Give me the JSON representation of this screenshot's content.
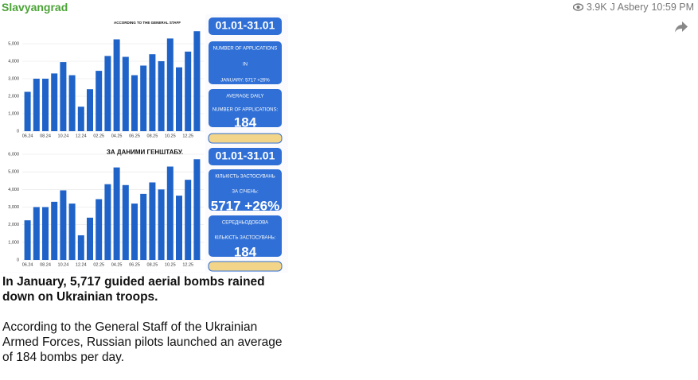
{
  "header": {
    "channel": "Slavyangrad",
    "views": "3.9K",
    "author": "J Asbery",
    "time": "10:59 PM"
  },
  "image": {
    "charts": [
      {
        "type": "bar",
        "caption": "ACCORDING TO THE GENERAL STAFF",
        "color": "#1f63c8",
        "categories": [
          "06.24",
          null,
          "08.24",
          null,
          "10.24",
          null,
          "12.24",
          null,
          "02.25",
          null,
          "04.25",
          null,
          "06.25",
          null,
          "08.25",
          null,
          "10.25",
          null,
          "12.25",
          null
        ],
        "values": [
          2250,
          3000,
          3000,
          3300,
          3950,
          3200,
          1400,
          2400,
          3450,
          4300,
          5250,
          4250,
          3200,
          3750,
          4400,
          4000,
          5300,
          3650,
          4550,
          5717
        ],
        "ylim": [
          0,
          6500
        ],
        "yticks": [
          0,
          {
            "value": 1000,
            "label": "1,000"
          },
          {
            "value": 2000,
            "label": "2,000"
          },
          {
            "value": 3000,
            "label": "3,000"
          },
          {
            "value": 4000,
            "label": "4,000"
          },
          {
            "value": 5000,
            "label": "5,000"
          }
        ],
        "panels": [
          {
            "lines": [
              "01.01-31.01"
            ]
          },
          {
            "lines": [
              "NUMBER OF APPLICATIONS",
              "IN",
              "JANUARY: 5717 +26%"
            ]
          },
          {
            "lines": [
              "AVERAGE DAILY",
              "NUMBER OF APPLICATIONS:",
              "184"
            ]
          }
        ]
      },
      {
        "type": "bar",
        "caption": "ЗА ДАНИМИ ГЕНШТАБУ.",
        "color": "#1f63c8",
        "categories": [
          "06.24",
          null,
          "08.24",
          null,
          "10.24",
          null,
          "12.24",
          null,
          "02.25",
          null,
          "04.25",
          null,
          "06.25",
          null,
          "08.25",
          null,
          "10.25",
          null,
          "12.25",
          null
        ],
        "values": [
          2250,
          3000,
          3000,
          3300,
          3950,
          3200,
          1400,
          2400,
          3450,
          4300,
          5250,
          4250,
          3200,
          3750,
          4400,
          4000,
          5300,
          3650,
          4550,
          5717
        ],
        "ylim": [
          0,
          6000
        ],
        "yticks": [
          0,
          {
            "value": 1000,
            "label": "1,000"
          },
          {
            "value": 2000,
            "label": "2,000"
          },
          {
            "value": 3000,
            "label": "3,000"
          },
          {
            "value": 4000,
            "label": "4,000"
          },
          {
            "value": 5000,
            "label": "5,000"
          },
          {
            "value": 6000,
            "label": "6,000"
          }
        ],
        "panels": [
          {
            "lines": [
              "01.01-31.01"
            ]
          },
          {
            "lines": [
              "КІЛЬКІСТЬ ЗАСТОСУВАНЬ",
              "ЗА СІЧЕНЬ:",
              "5717 +26%"
            ]
          },
          {
            "lines": [
              "СЕРЕДНЬОДОБОВА",
              "КІЛЬКІСТЬ ЗАСТОСУВАНЬ:",
              "184"
            ]
          }
        ]
      }
    ]
  },
  "message": {
    "headline": "In January, 5,717 guided aerial bombs rained down on Ukrainian troops.",
    "body": "According to the General Staff of the Ukrainian Armed Forces, Russian pilots launched an average of 184 bombs per day."
  }
}
